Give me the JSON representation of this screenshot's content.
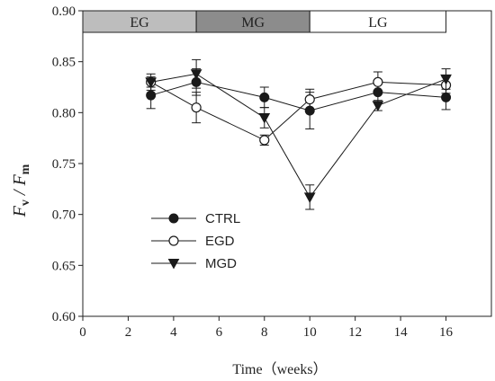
{
  "chart_data": {
    "type": "line",
    "xlabel": "Time（weeks）",
    "ylabel": {
      "main": "F",
      "sub1": "v",
      "sep": " / F",
      "sub2": "m"
    },
    "xlim": [
      0,
      18
    ],
    "ylim": [
      0.6,
      0.9
    ],
    "xticks": [
      0,
      2,
      4,
      6,
      8,
      10,
      12,
      14,
      16
    ],
    "yticks": [
      0.6,
      0.65,
      0.7,
      0.75,
      0.8,
      0.85,
      0.9
    ],
    "grid": false,
    "legend_position": "left-center",
    "stage_bands": [
      {
        "label": "EG",
        "x_start": 0,
        "x_end": 5,
        "color": "#bdbdbd"
      },
      {
        "label": "MG",
        "x_start": 5,
        "x_end": 10,
        "color": "#8c8c8c"
      },
      {
        "label": "LG",
        "x_start": 10,
        "x_end": 16,
        "color": "#ffffff"
      }
    ],
    "x": [
      3,
      5,
      8,
      10,
      13,
      16
    ],
    "series": [
      {
        "name": "CTRL",
        "marker": "filled-circle",
        "values": [
          0.817,
          0.83,
          0.815,
          0.802,
          0.82,
          0.815
        ],
        "errors": [
          0.013,
          0.013,
          0.01,
          0.018,
          0.01,
          0.012
        ]
      },
      {
        "name": "EGD",
        "marker": "open-circle",
        "values": [
          0.83,
          0.805,
          0.773,
          0.813,
          0.83,
          0.827
        ],
        "errors": [
          0.008,
          0.015,
          0.005,
          0.01,
          0.01,
          0.008
        ]
      },
      {
        "name": "MGD",
        "marker": "filled-triangle-down",
        "values": [
          0.83,
          0.838,
          0.795,
          0.717,
          0.807,
          0.833
        ],
        "errors": [
          0.005,
          0.014,
          0.01,
          0.012,
          0.005,
          0.01
        ]
      }
    ]
  },
  "colors": {
    "axis": "#222222",
    "series": "#1a1a1a"
  }
}
